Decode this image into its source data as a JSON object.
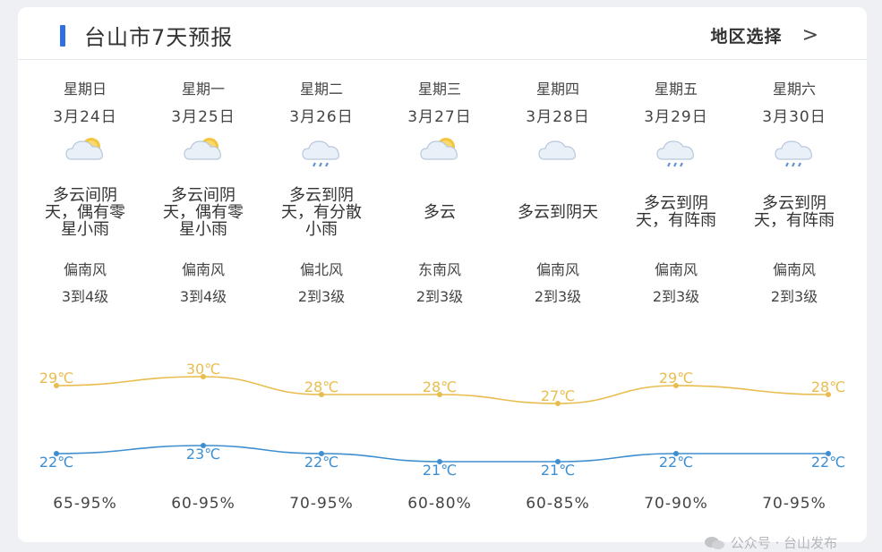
{
  "header": {
    "title": "台山市7天预报",
    "region_button": "地区选择",
    "chevron": ">"
  },
  "days": [
    {
      "week": "星期日",
      "date": "3月24日",
      "icon": "partly-cloudy-icon",
      "desc": "多云间阴天，偶有零星小雨",
      "wind": "偏南风",
      "level": "3到4级"
    },
    {
      "week": "星期一",
      "date": "3月25日",
      "icon": "partly-cloudy-icon",
      "desc": "多云间阴天，偶有零星小雨",
      "wind": "偏南风",
      "level": "3到4级"
    },
    {
      "week": "星期二",
      "date": "3月26日",
      "icon": "rain-cloud-icon",
      "desc": "多云到阴天，有分散小雨",
      "wind": "偏北风",
      "level": "2到3级"
    },
    {
      "week": "星期三",
      "date": "3月27日",
      "icon": "partly-cloudy-icon",
      "desc": "多云",
      "wind": "东南风",
      "level": "2到3级"
    },
    {
      "week": "星期四",
      "date": "3月28日",
      "icon": "cloudy-icon",
      "desc": "多云到阴天",
      "wind": "偏南风",
      "level": "2到3级"
    },
    {
      "week": "星期五",
      "date": "3月29日",
      "icon": "rain-cloud-icon",
      "desc": "多云到阴天，有阵雨",
      "wind": "偏南风",
      "level": "2到3级"
    },
    {
      "week": "星期六",
      "date": "3月30日",
      "icon": "rain-cloud-icon",
      "desc": "多云到阴天，有阵雨",
      "wind": "偏南风",
      "level": "2到3级"
    }
  ],
  "temps": {
    "unit": "℃",
    "high": [
      29,
      30,
      28,
      28,
      27,
      29,
      28
    ],
    "low": [
      22,
      23,
      22,
      21,
      21,
      22,
      22
    ],
    "high_color": "#e8bd4e",
    "low_color": "#3e8ed0"
  },
  "humidity": [
    "65-95%",
    "60-95%",
    "70-95%",
    "60-80%",
    "60-85%",
    "70-90%",
    "70-95%"
  ],
  "watermark": "公众号 · 台山发布"
}
